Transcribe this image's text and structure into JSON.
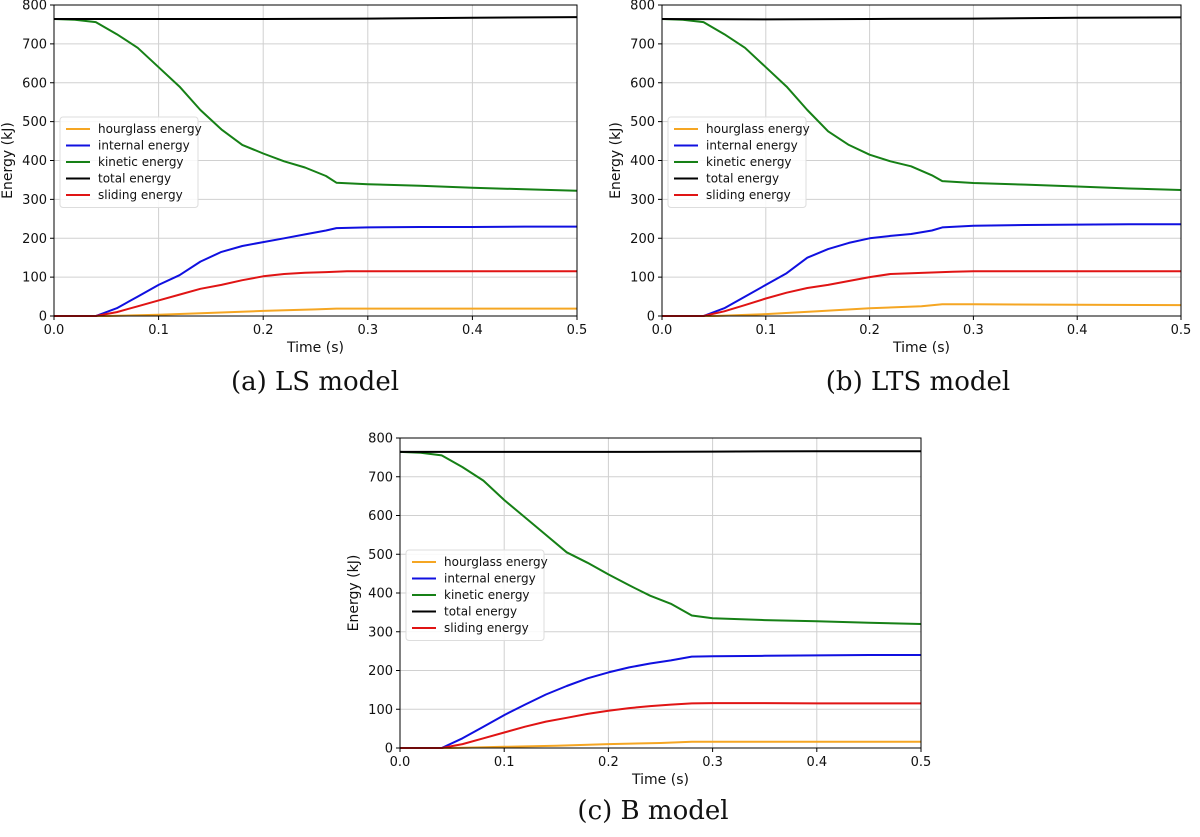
{
  "figure": {
    "captions": [
      "(a) LS model",
      "(b) LTS model",
      "(c) B model"
    ]
  },
  "colors": {
    "hourglass": "#f5a623",
    "internal": "#1010e0",
    "kinetic": "#168016",
    "total": "#000000",
    "sliding": "#e01414"
  },
  "chart_data": [
    {
      "type": "line",
      "caption": "(a) LS model",
      "xlabel": "Time (s)",
      "ylabel": "Energy (kJ)",
      "xlim": [
        0,
        0.5
      ],
      "ylim": [
        0,
        800
      ],
      "xticks": [
        "0.0",
        "0.1",
        "0.2",
        "0.3",
        "0.4",
        "0.5"
      ],
      "yticks": [
        "0",
        "100",
        "200",
        "300",
        "400",
        "500",
        "600",
        "700",
        "800"
      ],
      "grid": true,
      "legend": "center-left",
      "series": [
        {
          "name": "hourglass energy",
          "color_key": "hourglass",
          "x": [
            0,
            0.05,
            0.1,
            0.15,
            0.2,
            0.25,
            0.27,
            0.3,
            0.4,
            0.5
          ],
          "y": [
            0,
            0,
            3,
            8,
            13,
            17,
            19,
            19,
            19,
            19
          ]
        },
        {
          "name": "internal energy",
          "color_key": "internal",
          "x": [
            0,
            0.04,
            0.06,
            0.08,
            0.1,
            0.12,
            0.14,
            0.16,
            0.18,
            0.2,
            0.22,
            0.24,
            0.26,
            0.27,
            0.3,
            0.35,
            0.4,
            0.45,
            0.5
          ],
          "y": [
            0,
            0,
            20,
            50,
            80,
            105,
            140,
            165,
            180,
            190,
            200,
            210,
            220,
            226,
            228,
            229,
            229,
            230,
            230
          ]
        },
        {
          "name": "kinetic energy",
          "color_key": "kinetic",
          "x": [
            0,
            0.02,
            0.04,
            0.06,
            0.08,
            0.1,
            0.12,
            0.14,
            0.16,
            0.18,
            0.2,
            0.22,
            0.24,
            0.26,
            0.27,
            0.3,
            0.35,
            0.4,
            0.45,
            0.5
          ],
          "y": [
            764,
            762,
            756,
            725,
            690,
            640,
            590,
            530,
            480,
            440,
            418,
            398,
            382,
            360,
            343,
            339,
            335,
            330,
            326,
            322
          ]
        },
        {
          "name": "total energy",
          "color_key": "total",
          "x": [
            0,
            0.1,
            0.2,
            0.3,
            0.4,
            0.5
          ],
          "y": [
            764,
            764,
            764,
            765,
            767,
            769
          ]
        },
        {
          "name": "sliding energy",
          "color_key": "sliding",
          "x": [
            0,
            0.04,
            0.06,
            0.08,
            0.1,
            0.12,
            0.14,
            0.16,
            0.18,
            0.2,
            0.22,
            0.24,
            0.26,
            0.28,
            0.3,
            0.4,
            0.5
          ],
          "y": [
            0,
            0,
            10,
            25,
            40,
            55,
            70,
            80,
            92,
            102,
            108,
            111,
            113,
            115,
            115,
            115,
            115
          ]
        }
      ]
    },
    {
      "type": "line",
      "caption": "(b) LTS model",
      "xlabel": "Time (s)",
      "ylabel": "Energy (kJ)",
      "xlim": [
        0,
        0.5
      ],
      "ylim": [
        0,
        800
      ],
      "xticks": [
        "0.0",
        "0.1",
        "0.2",
        "0.3",
        "0.4",
        "0.5"
      ],
      "yticks": [
        "0",
        "100",
        "200",
        "300",
        "400",
        "500",
        "600",
        "700",
        "800"
      ],
      "grid": true,
      "legend": "center-left",
      "series": [
        {
          "name": "hourglass energy",
          "color_key": "hourglass",
          "x": [
            0,
            0.05,
            0.1,
            0.15,
            0.2,
            0.25,
            0.27,
            0.3,
            0.4,
            0.5
          ],
          "y": [
            0,
            0,
            5,
            12,
            20,
            25,
            30,
            30,
            29,
            28
          ]
        },
        {
          "name": "internal energy",
          "color_key": "internal",
          "x": [
            0,
            0.04,
            0.06,
            0.08,
            0.1,
            0.12,
            0.14,
            0.16,
            0.18,
            0.2,
            0.22,
            0.24,
            0.26,
            0.27,
            0.3,
            0.35,
            0.4,
            0.45,
            0.5
          ],
          "y": [
            0,
            0,
            20,
            50,
            80,
            110,
            150,
            172,
            188,
            200,
            206,
            211,
            220,
            228,
            232,
            234,
            235,
            236,
            236
          ]
        },
        {
          "name": "kinetic energy",
          "color_key": "kinetic",
          "x": [
            0,
            0.02,
            0.04,
            0.06,
            0.08,
            0.1,
            0.12,
            0.14,
            0.16,
            0.18,
            0.2,
            0.22,
            0.24,
            0.26,
            0.27,
            0.3,
            0.35,
            0.4,
            0.45,
            0.5
          ],
          "y": [
            764,
            762,
            756,
            725,
            690,
            640,
            590,
            530,
            475,
            440,
            415,
            398,
            385,
            362,
            347,
            342,
            338,
            333,
            328,
            324
          ]
        },
        {
          "name": "total energy",
          "color_key": "total",
          "x": [
            0,
            0.1,
            0.2,
            0.3,
            0.4,
            0.5
          ],
          "y": [
            764,
            763,
            764,
            765,
            767,
            768
          ]
        },
        {
          "name": "sliding energy",
          "color_key": "sliding",
          "x": [
            0,
            0.04,
            0.06,
            0.08,
            0.1,
            0.12,
            0.14,
            0.16,
            0.18,
            0.2,
            0.22,
            0.24,
            0.26,
            0.28,
            0.3,
            0.4,
            0.5
          ],
          "y": [
            0,
            0,
            12,
            28,
            45,
            60,
            72,
            80,
            90,
            100,
            108,
            110,
            112,
            114,
            115,
            115,
            115
          ]
        }
      ]
    },
    {
      "type": "line",
      "caption": "(c) B model",
      "xlabel": "Time (s)",
      "ylabel": "Energy (kJ)",
      "xlim": [
        0,
        0.5
      ],
      "ylim": [
        0,
        800
      ],
      "xticks": [
        "0.0",
        "0.1",
        "0.2",
        "0.3",
        "0.4",
        "0.5"
      ],
      "yticks": [
        "0",
        "100",
        "200",
        "300",
        "400",
        "500",
        "600",
        "700",
        "800"
      ],
      "grid": true,
      "legend": "center-left",
      "series": [
        {
          "name": "hourglass energy",
          "color_key": "hourglass",
          "x": [
            0,
            0.05,
            0.1,
            0.15,
            0.2,
            0.25,
            0.28,
            0.3,
            0.4,
            0.5
          ],
          "y": [
            0,
            0,
            3,
            6,
            10,
            13,
            16,
            16,
            16,
            16
          ]
        },
        {
          "name": "internal energy",
          "color_key": "internal",
          "x": [
            0,
            0.04,
            0.06,
            0.08,
            0.1,
            0.12,
            0.14,
            0.16,
            0.18,
            0.2,
            0.22,
            0.24,
            0.26,
            0.28,
            0.3,
            0.35,
            0.4,
            0.45,
            0.5
          ],
          "y": [
            0,
            0,
            25,
            55,
            85,
            112,
            138,
            160,
            180,
            195,
            208,
            218,
            226,
            236,
            237,
            238,
            239,
            240,
            240
          ]
        },
        {
          "name": "kinetic energy",
          "color_key": "kinetic",
          "x": [
            0,
            0.02,
            0.04,
            0.06,
            0.08,
            0.1,
            0.12,
            0.14,
            0.16,
            0.18,
            0.2,
            0.22,
            0.24,
            0.26,
            0.28,
            0.3,
            0.35,
            0.4,
            0.45,
            0.5
          ],
          "y": [
            764,
            762,
            755,
            725,
            690,
            640,
            595,
            550,
            505,
            478,
            448,
            420,
            393,
            372,
            342,
            335,
            330,
            327,
            323,
            320
          ]
        },
        {
          "name": "total energy",
          "color_key": "total",
          "x": [
            0,
            0.1,
            0.2,
            0.3,
            0.4,
            0.5
          ],
          "y": [
            764,
            764,
            764,
            765,
            766,
            766
          ]
        },
        {
          "name": "sliding energy",
          "color_key": "sliding",
          "x": [
            0,
            0.04,
            0.06,
            0.08,
            0.1,
            0.12,
            0.14,
            0.16,
            0.18,
            0.2,
            0.22,
            0.24,
            0.26,
            0.28,
            0.3,
            0.35,
            0.4,
            0.45,
            0.5
          ],
          "y": [
            0,
            0,
            10,
            25,
            40,
            55,
            68,
            78,
            88,
            96,
            103,
            108,
            112,
            115,
            116,
            116,
            115,
            115,
            115
          ]
        }
      ]
    }
  ]
}
